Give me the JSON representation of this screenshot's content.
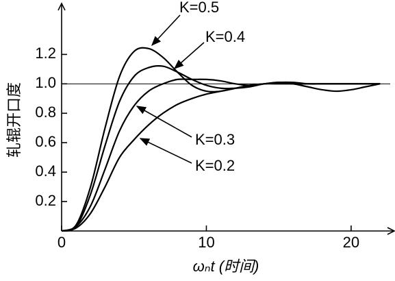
{
  "chart_data": {
    "type": "line",
    "x_label": "ωₙt (时间)",
    "y_label": "轧辊开口度",
    "x": [
      0,
      1,
      2,
      3,
      4,
      5,
      6,
      7,
      8,
      9,
      10,
      11,
      12,
      13,
      14,
      15,
      16,
      17,
      18,
      19,
      20,
      21,
      22
    ],
    "series": [
      {
        "name": "K=0.5",
        "color": "#000000",
        "values": [
          0,
          0.04,
          0.3,
          0.7,
          1.05,
          1.22,
          1.24,
          1.18,
          1.08,
          0.99,
          0.95,
          0.95,
          0.97,
          0.99,
          1.0,
          1.01,
          1.01,
          1.0,
          1.0,
          1.0,
          1.0,
          1.0,
          1.0
        ]
      },
      {
        "name": "K=0.4",
        "color": "#000000",
        "values": [
          0,
          0.03,
          0.25,
          0.58,
          0.88,
          1.05,
          1.11,
          1.12,
          1.08,
          1.03,
          0.99,
          0.97,
          0.97,
          0.98,
          1.0,
          1.01,
          1.0,
          1.0,
          1.0,
          1.0,
          1.0,
          1.0,
          1.0
        ]
      },
      {
        "name": "K=0.3",
        "color": "#000000",
        "values": [
          0,
          0.03,
          0.17,
          0.42,
          0.68,
          0.85,
          0.95,
          1.0,
          1.03,
          1.03,
          1.03,
          1.02,
          1.0,
          0.99,
          1.0,
          1.0,
          1.0,
          1.0,
          1.0,
          1.0,
          1.0,
          1.0,
          1.0
        ]
      },
      {
        "name": "K=0.2",
        "color": "#000000",
        "values": [
          0,
          0.02,
          0.12,
          0.3,
          0.5,
          0.62,
          0.72,
          0.8,
          0.86,
          0.9,
          0.93,
          0.95,
          0.97,
          0.99,
          1.0,
          1.01,
          1.0,
          0.98,
          0.96,
          0.95,
          0.96,
          0.98,
          1.0
        ]
      }
    ],
    "xlim": [
      0,
      22.7
    ],
    "ylim": [
      0,
      1.5
    ],
    "xticks": [
      0,
      10,
      20
    ],
    "yticks": [
      {
        "value": 0.2,
        "label": "0.2"
      },
      {
        "value": 0.4,
        "label": "0.4"
      },
      {
        "value": 0.6,
        "label": "0.6"
      },
      {
        "value": 0.8,
        "label": "0.8"
      },
      {
        "value": 1,
        "label": "1.0"
      },
      {
        "value": 1.2,
        "label": "1.2"
      }
    ]
  }
}
